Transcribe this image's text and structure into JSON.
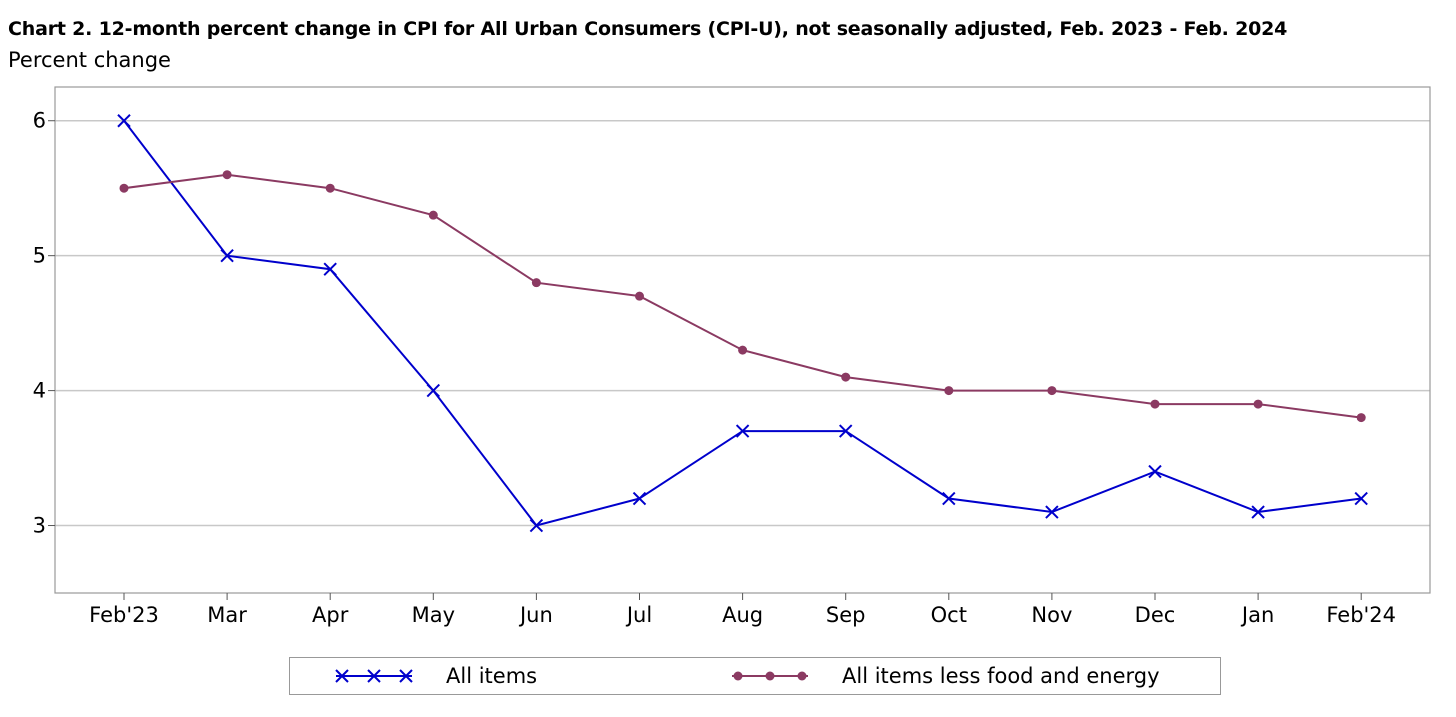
{
  "chart_data": {
    "type": "line",
    "title": "Chart 2. 12-month percent change in CPI for All Urban Consumers (CPI-U), not seasonally adjusted, Feb. 2023 - Feb. 2024",
    "ylabel": "Percent change",
    "xlabel": "",
    "categories": [
      "Feb'23",
      "Mar",
      "Apr",
      "May",
      "Jun",
      "Jul",
      "Aug",
      "Sep",
      "Oct",
      "Nov",
      "Dec",
      "Jan",
      "Feb'24"
    ],
    "ylim": [
      2.5,
      6.25
    ],
    "yticks": [
      3,
      4,
      5,
      6
    ],
    "grid": true,
    "legend_position": "bottom",
    "series": [
      {
        "name": "All items",
        "color": "#0000cc",
        "marker": "x",
        "values": [
          6.0,
          5.0,
          4.9,
          4.0,
          3.0,
          3.2,
          3.7,
          3.7,
          3.2,
          3.1,
          3.4,
          3.1,
          3.2
        ]
      },
      {
        "name": "All items less food and energy",
        "color": "#8b3a62",
        "marker": "circle",
        "values": [
          5.5,
          5.6,
          5.5,
          5.3,
          4.8,
          4.7,
          4.3,
          4.1,
          4.0,
          4.0,
          3.9,
          3.9,
          3.8
        ]
      }
    ]
  }
}
